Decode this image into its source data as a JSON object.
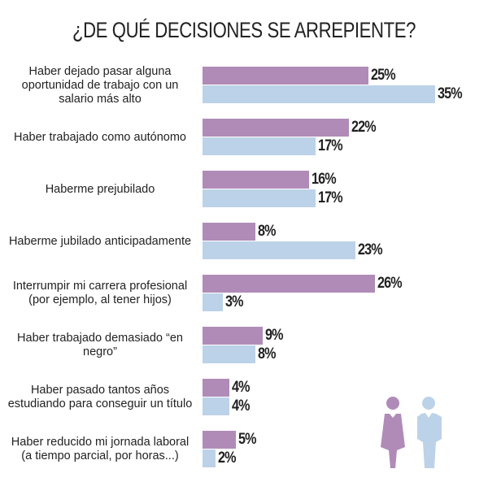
{
  "chart_data": {
    "type": "bar",
    "orientation": "horizontal",
    "title": "¿DE QUÉ DECISIONES SE ARREPIENTE?",
    "categories": [
      "Haber dejado pasar alguna oportunidad de trabajo con un salario más alto",
      "Haber trabajado como autónomo",
      "Haberme prejubilado",
      "Haberme jubilado anticipadamente",
      "Interrumpir mi carrera profesional (por ejemplo, al tener hijos)",
      "Haber trabajado demasiado “en negro”",
      "Haber pasado tantos años estudiando para conseguir un título",
      "Haber reducido mi jornada laboral (a tiempo parcial, por horas...)"
    ],
    "series": [
      {
        "values": [
          25,
          22,
          16,
          8,
          26,
          9,
          4,
          5
        ],
        "color": "#b08bb8",
        "icon": "woman-icon"
      },
      {
        "values": [
          35,
          17,
          17,
          23,
          3,
          8,
          4,
          2
        ],
        "color": "#bcd2e8",
        "icon": "man-icon"
      }
    ],
    "value_suffix": "%",
    "grid": false,
    "legend": "bottom-right (icons)"
  }
}
